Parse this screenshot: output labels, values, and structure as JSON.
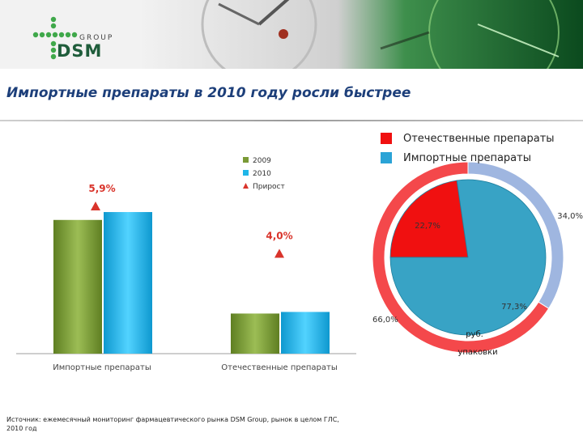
{
  "header": {
    "logo_group_text": "GROUP",
    "logo_brand_text": "DSM"
  },
  "page_title": "Импортные препараты в 2010 году росли быстрее",
  "chart_data": [
    {
      "type": "bar",
      "categories": [
        "Импортные препараты",
        "Отечественные препараты"
      ],
      "series": [
        {
          "name": "2009",
          "values": [
            100,
            30
          ],
          "color": "#7a9a36"
        },
        {
          "name": "2010",
          "values": [
            105.9,
            31.2
          ],
          "color": "#1fb6e8"
        }
      ],
      "growth": {
        "name": "Прирост",
        "values": [
          "5,9%",
          "4,0%"
        ],
        "color": "#d9342b"
      },
      "legend_position": "top-right",
      "ylim": [
        0,
        115
      ],
      "grid": false
    },
    {
      "type": "pie",
      "outer_ring": {
        "slices": [
          {
            "label": "Отечественные препараты",
            "value": 34.0,
            "value_label": "34,0%",
            "color": "#9fb6e0"
          },
          {
            "label": "Импортные препараты",
            "value": 66.0,
            "value_label": "66,0%",
            "color": "#f4484b"
          }
        ],
        "unit_label": "упаковки"
      },
      "inner_pie": {
        "slices": [
          {
            "label": "Отечественные препараты",
            "value": 22.7,
            "value_label": "22,7%",
            "color": "#f01010"
          },
          {
            "label": "Импортные препараты",
            "value": 77.3,
            "value_label": "77,3%",
            "color": "#38a3c5"
          }
        ],
        "unit_label": "руб."
      },
      "legend": [
        {
          "label": "Отечественные препараты",
          "color": "#f01010"
        },
        {
          "label": "Импортные препараты",
          "color": "#2ba3d6"
        }
      ]
    }
  ],
  "source_note": "Источник: ежемесячный мониторинг фармацевтического рынка DSM Group, рынок в целом ГЛС, 2010 год"
}
